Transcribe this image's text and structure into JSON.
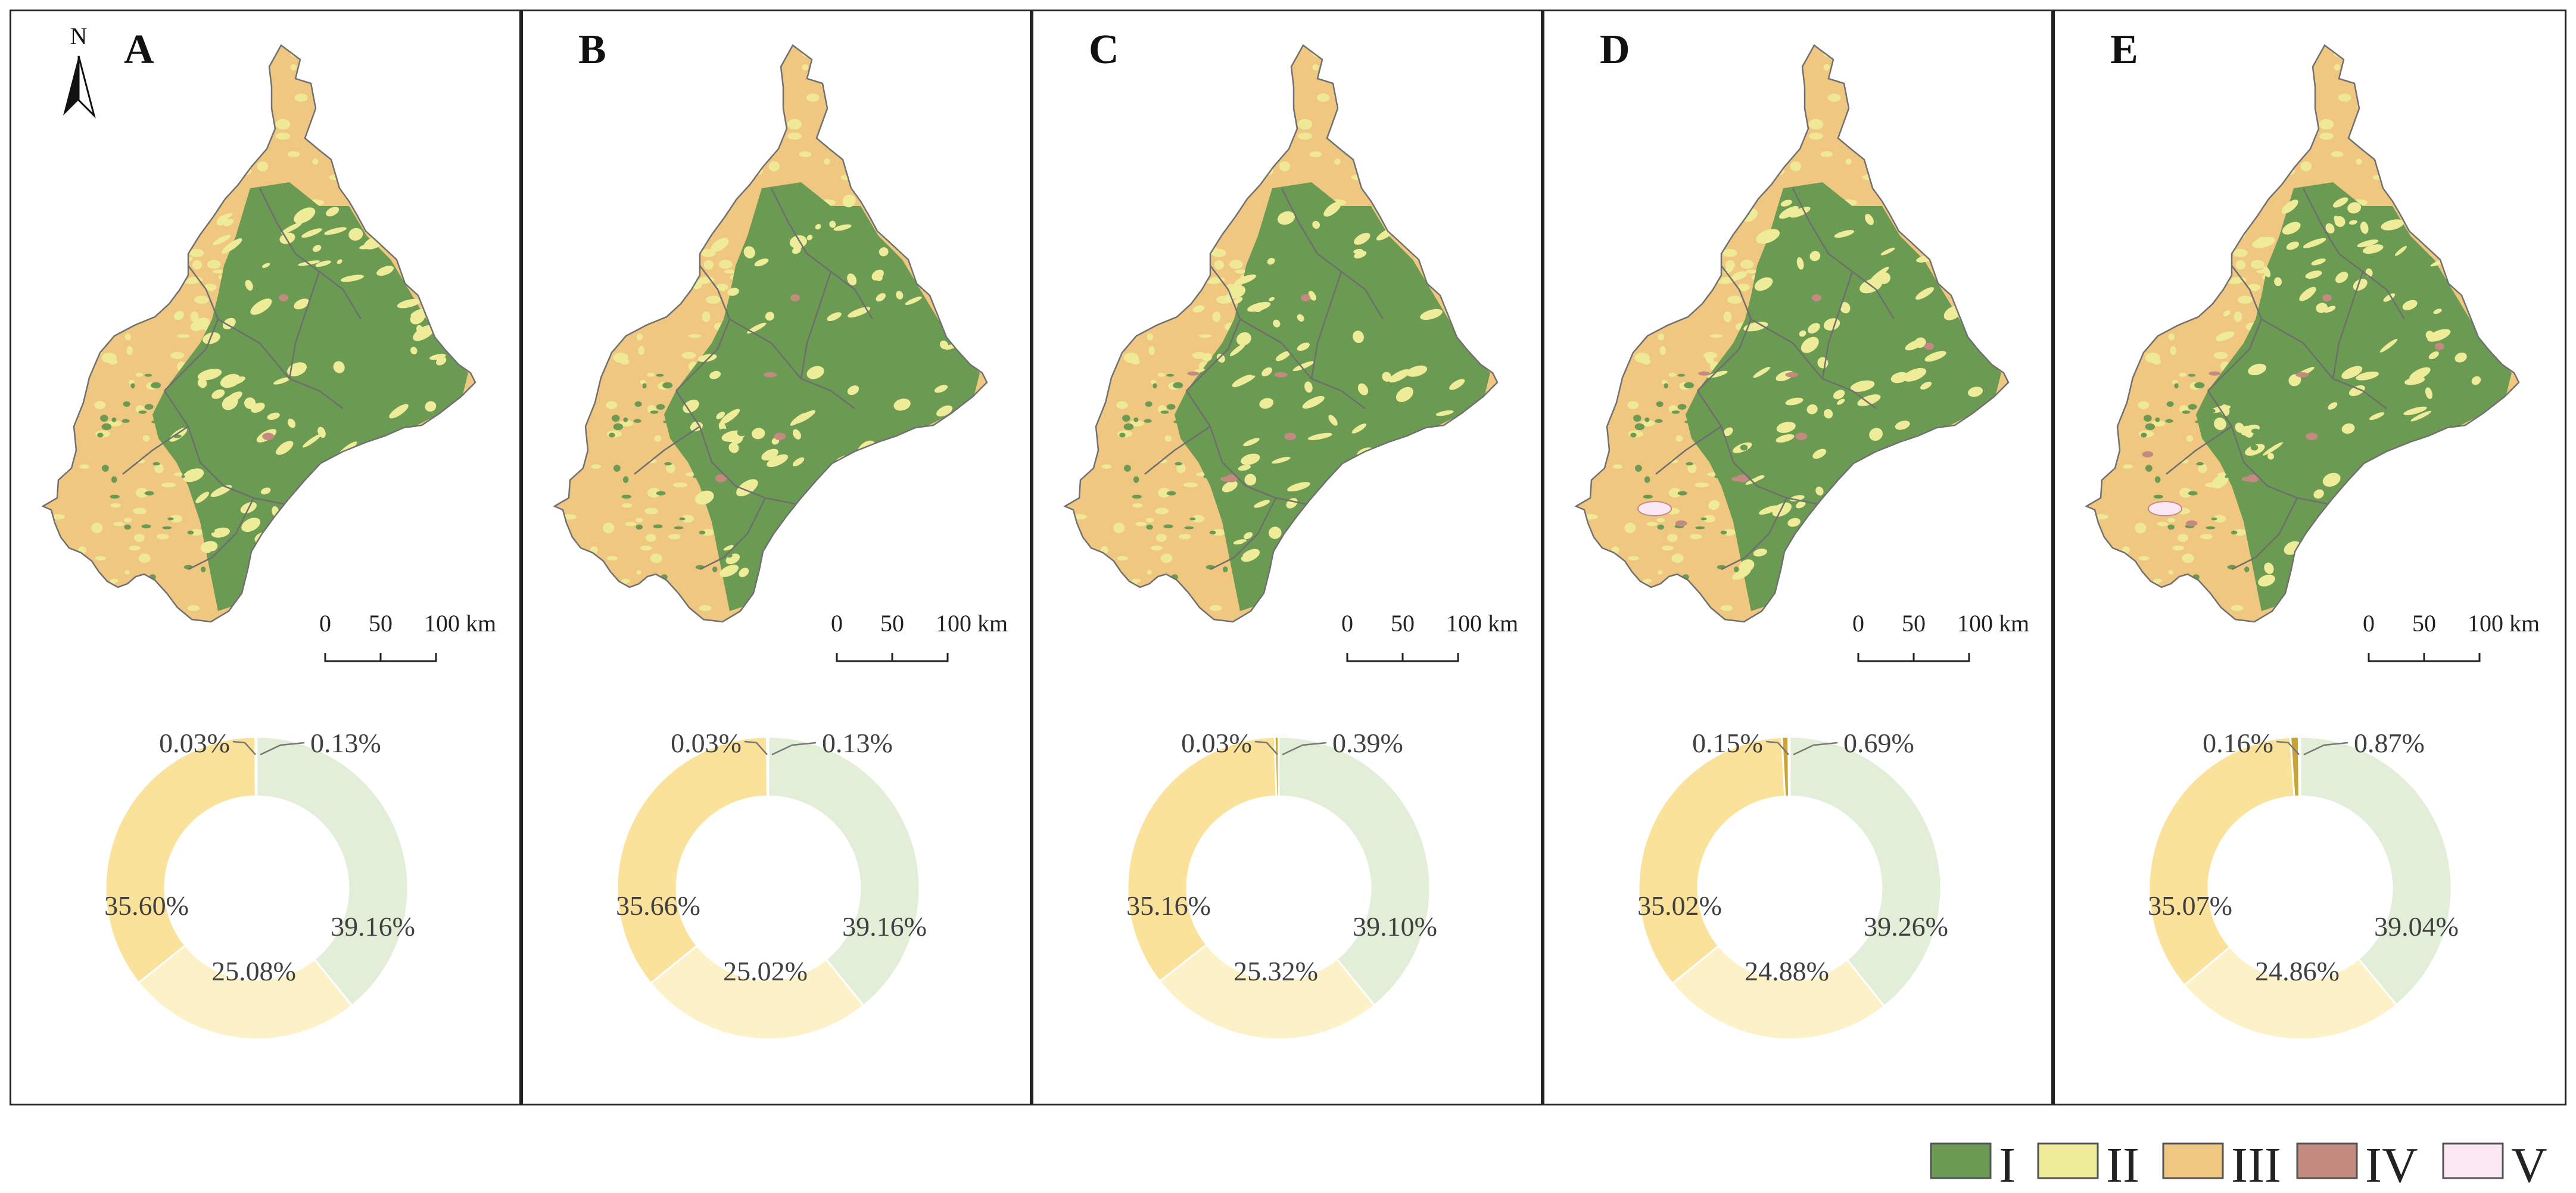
{
  "panels": [
    {
      "letter": "A",
      "donut": {
        "labels": {
          "I": "39.16%",
          "II": "25.08%",
          "III": "35.60%",
          "IV": "0.13%",
          "V": "0.03%"
        },
        "values": [
          39.16,
          25.08,
          35.6,
          0.13,
          0.03
        ]
      }
    },
    {
      "letter": "B",
      "donut": {
        "labels": {
          "I": "39.16%",
          "II": "25.02%",
          "III": "35.66%",
          "IV": "0.13%",
          "V": "0.03%"
        },
        "values": [
          39.16,
          25.02,
          35.66,
          0.13,
          0.03
        ]
      }
    },
    {
      "letter": "C",
      "donut": {
        "labels": {
          "I": "39.10%",
          "II": "25.32%",
          "III": "35.16%",
          "IV": "0.39%",
          "V": "0.03%"
        },
        "values": [
          39.1,
          25.32,
          35.16,
          0.39,
          0.03
        ]
      }
    },
    {
      "letter": "D",
      "donut": {
        "labels": {
          "I": "39.26%",
          "II": "24.88%",
          "III": "35.02%",
          "IV": "0.69%",
          "V": "0.15%"
        },
        "values": [
          39.26,
          24.88,
          35.02,
          0.69,
          0.15
        ]
      }
    },
    {
      "letter": "E",
      "donut": {
        "labels": {
          "I": "39.04%",
          "II": "24.86%",
          "III": "35.07%",
          "IV": "0.87%",
          "V": "0.16%"
        },
        "values": [
          39.04,
          24.86,
          35.07,
          0.87,
          0.16
        ]
      }
    }
  ],
  "north_arrow": {
    "label": "N"
  },
  "scale_bar": {
    "ticks": [
      "0",
      "50",
      "100 km"
    ]
  },
  "legend": [
    {
      "label": "I",
      "color": "#6b9a52"
    },
    {
      "label": "II",
      "color": "#eeec98"
    },
    {
      "label": "III",
      "color": "#f0c781"
    },
    {
      "label": "IV",
      "color": "#c48a80"
    },
    {
      "label": "V",
      "color": "#fce8f5"
    }
  ],
  "donut_colors": [
    "#e2eed8",
    "#fdf1c8",
    "#fbe29b",
    "#c9a536",
    "#d2c896"
  ]
}
